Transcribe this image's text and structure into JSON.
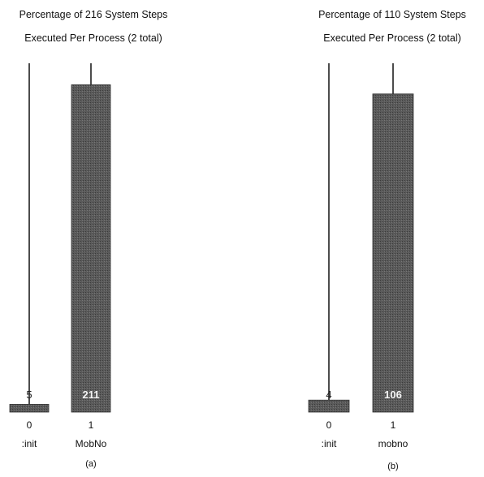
{
  "chart_data": [
    {
      "type": "bar",
      "title_line1": "Percentage of 216 System Steps",
      "title_line2": "Executed Per Process (2 total)",
      "categories": [
        "0",
        "1"
      ],
      "category_names": [
        ":init",
        "MobNo"
      ],
      "values": [
        5,
        211
      ],
      "value_labels": [
        "5",
        "211"
      ],
      "total": 216,
      "caption": "(a)",
      "bar_color": "#4a4a4a"
    },
    {
      "type": "bar",
      "title_line1": "Percentage of 110 System Steps",
      "title_line2": "Executed Per Process (2 total)",
      "categories": [
        "0",
        "1"
      ],
      "category_names": [
        ":init",
        "mobno"
      ],
      "values": [
        4,
        106
      ],
      "value_labels": [
        "4",
        "106"
      ],
      "total": 110,
      "caption": "(b)",
      "bar_color": "#4a4a4a"
    }
  ]
}
